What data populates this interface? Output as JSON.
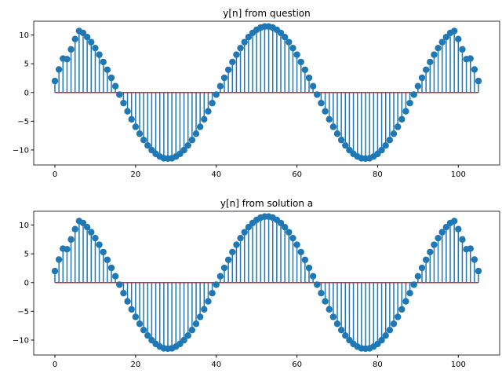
{
  "chart_data": [
    {
      "type": "stem",
      "title": "y[n] from question",
      "series": [
        {
          "color": "#1f77b4",
          "baseline_color": "#d62728",
          "values": [
            2.0,
            4.0,
            5.9,
            5.8,
            7.5,
            9.3,
            10.7,
            10.36,
            9.64,
            8.76,
            7.73,
            6.58,
            5.31,
            3.96,
            2.56,
            1.1,
            -0.37,
            -1.84,
            -3.27,
            -4.66,
            -5.97,
            -7.17,
            -8.26,
            -9.21,
            -10.02,
            -10.67,
            -11.14,
            -11.44,
            -11.5,
            -11.44,
            -11.14,
            -10.67,
            -10.02,
            -9.21,
            -8.26,
            -7.17,
            -5.97,
            -4.66,
            -3.27,
            -1.84,
            -0.37,
            1.1,
            2.56,
            3.96,
            5.31,
            6.58,
            7.73,
            8.76,
            9.64,
            10.36,
            10.91,
            11.29,
            11.48,
            11.48,
            11.29,
            10.91,
            10.36,
            9.64,
            8.76,
            7.73,
            6.58,
            5.31,
            3.96,
            2.56,
            1.1,
            -0.37,
            -1.84,
            -3.27,
            -4.66,
            -5.97,
            -7.17,
            -8.26,
            -9.21,
            -10.02,
            -10.67,
            -11.14,
            -11.44,
            -11.5,
            -11.44,
            -11.14,
            -10.67,
            -10.02,
            -9.21,
            -8.26,
            -7.17,
            -5.97,
            -4.66,
            -3.27,
            -1.84,
            -0.37,
            1.1,
            2.56,
            3.96,
            5.31,
            6.58,
            7.73,
            8.76,
            9.64,
            10.36,
            10.7,
            9.3,
            7.5,
            5.8,
            5.9,
            4.0,
            2.0
          ]
        }
      ],
      "xlim": [
        -5.25,
        110.25
      ],
      "xticks": [
        0,
        20,
        40,
        60,
        80,
        100
      ],
      "ylim": [
        -12.6,
        12.4
      ],
      "yticks": [
        {
          "value": -10,
          "label": "−10"
        },
        {
          "value": -5,
          "label": "−5"
        },
        0,
        5,
        10
      ]
    },
    {
      "type": "stem",
      "title": "y[n] from solution a",
      "series": [
        {
          "color": "#1f77b4",
          "baseline_color": "#d62728",
          "values": [
            2.0,
            4.0,
            5.9,
            5.8,
            7.5,
            9.3,
            10.7,
            10.36,
            9.64,
            8.76,
            7.73,
            6.58,
            5.31,
            3.96,
            2.56,
            1.1,
            -0.37,
            -1.84,
            -3.27,
            -4.66,
            -5.97,
            -7.17,
            -8.26,
            -9.21,
            -10.02,
            -10.67,
            -11.14,
            -11.44,
            -11.5,
            -11.44,
            -11.14,
            -10.67,
            -10.02,
            -9.21,
            -8.26,
            -7.17,
            -5.97,
            -4.66,
            -3.27,
            -1.84,
            -0.37,
            1.1,
            2.56,
            3.96,
            5.31,
            6.58,
            7.73,
            8.76,
            9.64,
            10.36,
            10.91,
            11.29,
            11.48,
            11.48,
            11.29,
            10.91,
            10.36,
            9.64,
            8.76,
            7.73,
            6.58,
            5.31,
            3.96,
            2.56,
            1.1,
            -0.37,
            -1.84,
            -3.27,
            -4.66,
            -5.97,
            -7.17,
            -8.26,
            -9.21,
            -10.02,
            -10.67,
            -11.14,
            -11.44,
            -11.5,
            -11.44,
            -11.14,
            -10.67,
            -10.02,
            -9.21,
            -8.26,
            -7.17,
            -5.97,
            -4.66,
            -3.27,
            -1.84,
            -0.37,
            1.1,
            2.56,
            3.96,
            5.31,
            6.58,
            7.73,
            8.76,
            9.64,
            10.36,
            10.7,
            9.3,
            7.5,
            5.8,
            5.9,
            4.0,
            2.0
          ]
        }
      ],
      "xlim": [
        -5.25,
        110.25
      ],
      "xticks": [
        0,
        20,
        40,
        60,
        80,
        100
      ],
      "ylim": [
        -12.6,
        12.4
      ],
      "yticks": [
        {
          "value": -10,
          "label": "−10"
        },
        {
          "value": -5,
          "label": "−5"
        },
        0,
        5,
        10
      ]
    }
  ]
}
